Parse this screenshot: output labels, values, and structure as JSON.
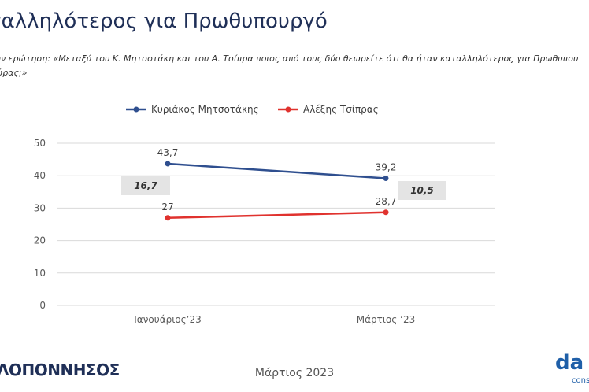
{
  "header": {
    "title": "ταλληλότερος για Πρωθυπουργό",
    "question_line1": "ην ερώτηση: «Μεταξύ του Κ. Μητσοτάκη και του Α. Τσίπρα ποιος από τους δύο θεωρείτε ότι θα ήταν καταλληλότερος για Πρωθυπου",
    "question_line2": "ώρας;»"
  },
  "chart_data": {
    "type": "line",
    "categories": [
      "Ιανουάριος’23",
      "Μάρτιος ‘23"
    ],
    "series": [
      {
        "name": "Κυριάκος Μητσοτάκης",
        "values": [
          43.7,
          39.2
        ],
        "labels": [
          "43,7",
          "39,2"
        ],
        "color": "#2f4f8f"
      },
      {
        "name": "Αλέξης Τσίπρας",
        "values": [
          27,
          28.7
        ],
        "labels": [
          "27",
          "28,7"
        ],
        "color": "#e0322e"
      }
    ],
    "difference_labels": [
      "16,7",
      "10,5"
    ],
    "ylim": [
      0,
      50
    ],
    "yticks": [
      0,
      10,
      20,
      30,
      40,
      50
    ],
    "ytick_labels": [
      "0",
      "10",
      "20",
      "30",
      "40",
      "50"
    ],
    "grid": true,
    "legend": "top"
  },
  "footer": {
    "left_text": "ΛΟΠΟΝΝΗΣΟΣ",
    "center_text": "Μάρτιος 2023",
    "logo_text": "da",
    "logo_sub": "cons"
  }
}
